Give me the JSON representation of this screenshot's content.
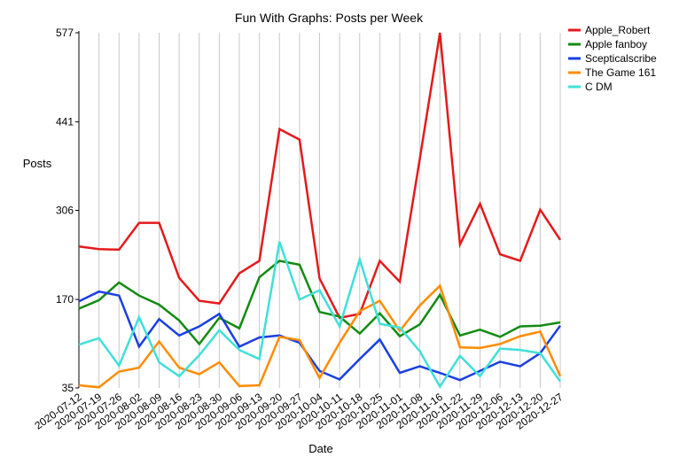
{
  "chart_data": {
    "type": "line",
    "title": "Fun With Graphs: Posts per Week",
    "xlabel": "Date",
    "ylabel": "Posts",
    "x": [
      "2020-07-12",
      "2020-07-19",
      "2020-07-26",
      "2020-08-02",
      "2020-08-09",
      "2020-08-16",
      "2020-08-23",
      "2020-08-30",
      "2020-09-06",
      "2020-09-13",
      "2020-09-20",
      "2020-09-27",
      "2020-10-04",
      "2020-10-11",
      "2020-10-18",
      "2020-10-25",
      "2020-11-01",
      "2020-11-08",
      "2020-11-16",
      "2020-11-22",
      "2020-11-29",
      "2020-12-06",
      "2020-12-13",
      "2020-12-20",
      "2020-12-27"
    ],
    "yticks": [
      35,
      170,
      306,
      441,
      577
    ],
    "ylim": [
      35,
      577
    ],
    "grid": "vertical",
    "legend_position": "top-right",
    "series": [
      {
        "name": "Apple_Robert",
        "color": "#e41a1c",
        "values": [
          251,
          247,
          246,
          287,
          287,
          203,
          168,
          164,
          210,
          229,
          430,
          414,
          202,
          142,
          148,
          229,
          197,
          385,
          577,
          254,
          316,
          239,
          229,
          307,
          261
        ]
      },
      {
        "name": "Apple fanboy",
        "color": "#138a13",
        "values": [
          156,
          169,
          196,
          176,
          162,
          138,
          102,
          142,
          126,
          204,
          229,
          223,
          151,
          144,
          118,
          149,
          114,
          132,
          177,
          115,
          124,
          113,
          129,
          130,
          135
        ]
      },
      {
        "name": "Scepticalscribe",
        "color": "#1a3fe0",
        "values": [
          167,
          182,
          176,
          98,
          140,
          115,
          129,
          148,
          98,
          112,
          115,
          104,
          61,
          48,
          79,
          109,
          58,
          68,
          58,
          47,
          61,
          75,
          68,
          88,
          130
        ]
      },
      {
        "name": "The Game 161",
        "color": "#ff8c00",
        "values": [
          39,
          36,
          60,
          66,
          106,
          66,
          56,
          74,
          38,
          39,
          113,
          108,
          50,
          104,
          152,
          168,
          122,
          161,
          191,
          97,
          96,
          102,
          114,
          121,
          53
        ]
      },
      {
        "name": "C DM",
        "color": "#40e0d8",
        "values": [
          101,
          111,
          69,
          143,
          74,
          53,
          85,
          123,
          93,
          79,
          258,
          170,
          184,
          129,
          231,
          133,
          127,
          91,
          37,
          84,
          53,
          95,
          93,
          88,
          45
        ]
      }
    ]
  }
}
